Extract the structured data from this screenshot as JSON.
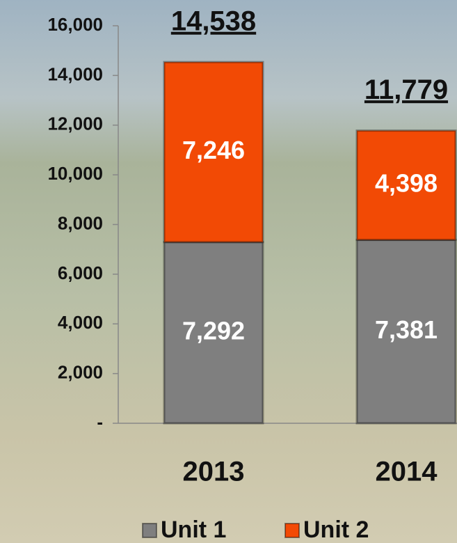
{
  "chart_data": {
    "type": "bar",
    "stacked": true,
    "categories": [
      "2013",
      "2014"
    ],
    "series": [
      {
        "name": "Unit 1",
        "color": "#7f7f7f",
        "values": [
          7292,
          7381
        ],
        "value_labels": [
          "7,292",
          "7,381"
        ]
      },
      {
        "name": "Unit 2",
        "color": "#f24a05",
        "values": [
          7246,
          4398
        ],
        "value_labels": [
          "7,246",
          "4,398"
        ]
      }
    ],
    "totals": {
      "values": [
        14538,
        11779
      ],
      "value_labels": [
        "14,538",
        "11,779"
      ]
    },
    "ylim": [
      0,
      16000
    ],
    "yticks": [
      {
        "value": 0,
        "label": "-"
      },
      {
        "value": 2000,
        "label": "2,000"
      },
      {
        "value": 4000,
        "label": "4,000"
      },
      {
        "value": 6000,
        "label": "6,000"
      },
      {
        "value": 8000,
        "label": "8,000"
      },
      {
        "value": 10000,
        "label": "10,000"
      },
      {
        "value": 12000,
        "label": "12,000"
      },
      {
        "value": 14000,
        "label": "14,000"
      },
      {
        "value": 16000,
        "label": "16,000"
      }
    ],
    "grid": false,
    "legend": "bottom"
  }
}
